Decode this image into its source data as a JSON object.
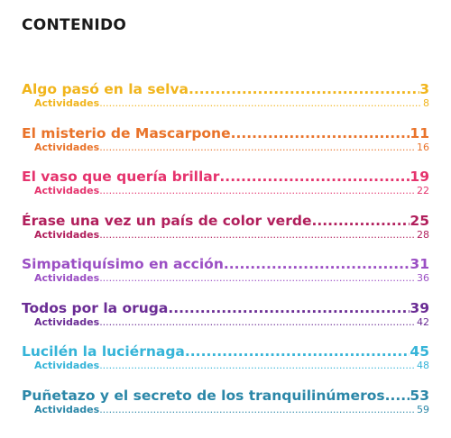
{
  "heading": "CONTENIDO",
  "entries": [
    {
      "title": "Algo pasó en la selva",
      "page": "3",
      "sub_label": "Actividades",
      "sub_page": "8",
      "color": "#f1b51c"
    },
    {
      "title": "El misterio de Mascarpone",
      "page": "11",
      "sub_label": "Actividades",
      "sub_page": "16",
      "color": "#e9732a"
    },
    {
      "title": "El vaso que quería brillar",
      "page": "19",
      "sub_label": "Actividades",
      "sub_page": "22",
      "color": "#e5336d"
    },
    {
      "title": "Érase una vez un país de color verde",
      "page": "25",
      "sub_label": "Actividades",
      "sub_page": "28",
      "color": "#b11f5c"
    },
    {
      "title": "Simpatiquísimo en acción",
      "page": "31",
      "sub_label": "Actividades",
      "sub_page": "36",
      "color": "#9b4fc4"
    },
    {
      "title": "Todos por la oruga",
      "page": "39",
      "sub_label": "Actividades",
      "sub_page": "42",
      "color": "#6a2c94"
    },
    {
      "title": "Lucilén la luciérnaga",
      "page": "45",
      "sub_label": "Actividades",
      "sub_page": "48",
      "color": "#35b4d8"
    },
    {
      "title": "Puñetazo y el secreto de los tranquilinúmeros",
      "page": "53",
      "sub_label": "Actividades",
      "sub_page": "59",
      "color": "#2b87a8"
    }
  ]
}
